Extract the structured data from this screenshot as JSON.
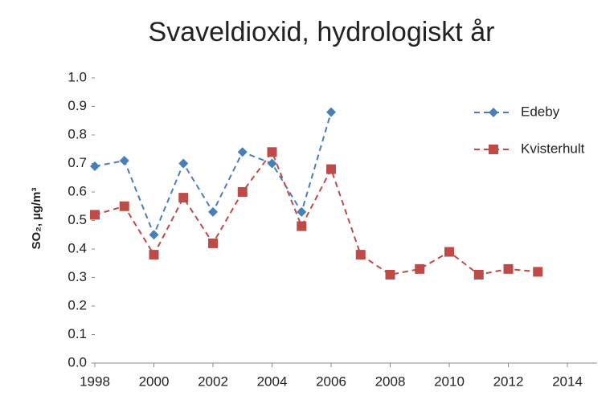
{
  "chart_data": {
    "type": "line",
    "title": "Svaveldioxid, hydrologiskt år",
    "y_label": "SO₂, µg/m³",
    "xlim": [
      1998,
      2015
    ],
    "xticks": [
      1998,
      2000,
      2002,
      2004,
      2006,
      2008,
      2010,
      2012,
      2014
    ],
    "ylim": [
      0,
      1
    ],
    "yticks": [
      {
        "value": 0,
        "label": "0.0"
      },
      0.1,
      0.2,
      0.3,
      0.4,
      0.5,
      0.6,
      0.7,
      0.8,
      0.9,
      {
        "value": 1,
        "label": "1.0"
      }
    ],
    "legend": "top-right",
    "series": [
      {
        "name": "Edeby",
        "color": "#4a7ebb",
        "marker": "diamond",
        "x": [
          1998,
          1999,
          2000,
          2001,
          2002,
          2003,
          2004,
          2005,
          2006
        ],
        "values": [
          0.69,
          0.71,
          0.45,
          0.7,
          0.53,
          0.74,
          0.7,
          0.53,
          0.88
        ]
      },
      {
        "name": "Kvisterhult",
        "color": "#be4b48",
        "marker": "square",
        "x": [
          1998,
          1999,
          2000,
          2001,
          2002,
          2003,
          2004,
          2005,
          2006,
          2007,
          2008,
          2009,
          2010,
          2011,
          2012,
          2013
        ],
        "values": [
          0.52,
          0.55,
          0.38,
          0.58,
          0.42,
          0.6,
          0.74,
          0.48,
          0.68,
          0.38,
          0.31,
          0.33,
          0.39,
          0.31,
          0.33,
          0.32
        ]
      }
    ]
  }
}
